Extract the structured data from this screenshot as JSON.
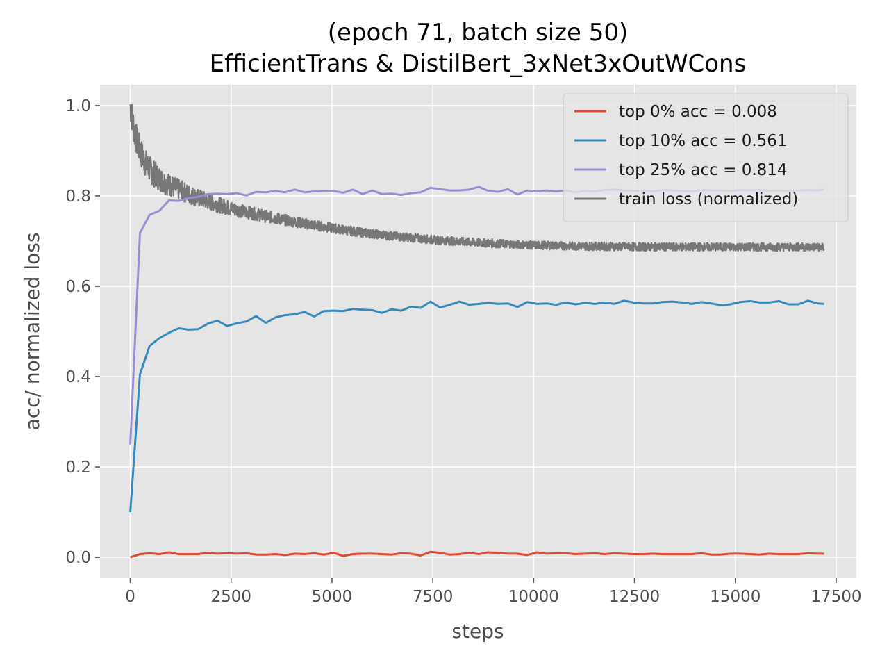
{
  "chart_data": {
    "type": "line",
    "title": "(epoch 71, batch size 50)",
    "subtitle": "EfficientTrans & DistilBert_3xNet3xOutWCons",
    "xlabel": "steps",
    "ylabel": "acc/ normalized loss",
    "xlim": [
      -750,
      18000
    ],
    "ylim": [
      -0.046,
      1.046
    ],
    "xticks": [
      0,
      2500,
      5000,
      7500,
      10000,
      12500,
      15000,
      17500
    ],
    "yticks": [
      0.0,
      0.2,
      0.4,
      0.6,
      0.8,
      1.0
    ],
    "xtick_labels": [
      "0",
      "2500",
      "5000",
      "7500",
      "10000",
      "12500",
      "15000",
      "17500"
    ],
    "ytick_labels": [
      "0.0",
      "0.2",
      "0.4",
      "0.6",
      "0.8",
      "1.0"
    ],
    "grid": true,
    "legend_position": "top-right",
    "background": "#e5e5e5",
    "series": [
      {
        "name": "top 0% acc = 0.008",
        "color": "#e24a33",
        "x": [
          0,
          240,
          480,
          720,
          960,
          1200,
          1440,
          1680,
          1920,
          2160,
          2400,
          2640,
          2880,
          3120,
          3360,
          3600,
          3840,
          4080,
          4320,
          4560,
          4800,
          5040,
          5280,
          5520,
          5760,
          6000,
          6240,
          6480,
          6720,
          6960,
          7200,
          7440,
          7680,
          7920,
          8160,
          8400,
          8640,
          8880,
          9120,
          9360,
          9600,
          9840,
          10080,
          10320,
          10560,
          10800,
          11040,
          11280,
          11520,
          11760,
          12000,
          12240,
          12480,
          12720,
          12960,
          13200,
          13440,
          13680,
          13920,
          14160,
          14400,
          14640,
          14880,
          15120,
          15360,
          15600,
          15840,
          16080,
          16320,
          16560,
          16800,
          17040,
          17200
        ],
        "y": [
          0.0,
          0.007,
          0.009,
          0.007,
          0.011,
          0.007,
          0.007,
          0.007,
          0.01,
          0.008,
          0.009,
          0.008,
          0.009,
          0.006,
          0.006,
          0.007,
          0.005,
          0.008,
          0.007,
          0.009,
          0.006,
          0.01,
          0.003,
          0.007,
          0.008,
          0.008,
          0.007,
          0.006,
          0.009,
          0.008,
          0.004,
          0.012,
          0.01,
          0.006,
          0.007,
          0.01,
          0.007,
          0.011,
          0.01,
          0.008,
          0.008,
          0.005,
          0.011,
          0.008,
          0.009,
          0.009,
          0.007,
          0.008,
          0.009,
          0.007,
          0.009,
          0.008,
          0.007,
          0.007,
          0.008,
          0.007,
          0.007,
          0.007,
          0.007,
          0.009,
          0.006,
          0.006,
          0.008,
          0.008,
          0.007,
          0.006,
          0.008,
          0.007,
          0.007,
          0.007,
          0.009,
          0.008,
          0.008
        ]
      },
      {
        "name": "top 10% acc = 0.561",
        "color": "#348abd",
        "x": [
          0,
          240,
          480,
          720,
          960,
          1200,
          1440,
          1680,
          1920,
          2160,
          2400,
          2640,
          2880,
          3120,
          3360,
          3600,
          3840,
          4080,
          4320,
          4560,
          4800,
          5040,
          5280,
          5520,
          5760,
          6000,
          6240,
          6480,
          6720,
          6960,
          7200,
          7440,
          7680,
          7920,
          8160,
          8400,
          8640,
          8880,
          9120,
          9360,
          9600,
          9840,
          10080,
          10320,
          10560,
          10800,
          11040,
          11280,
          11520,
          11760,
          12000,
          12240,
          12480,
          12720,
          12960,
          13200,
          13440,
          13680,
          13920,
          14160,
          14400,
          14640,
          14880,
          15120,
          15360,
          15600,
          15840,
          16080,
          16320,
          16560,
          16800,
          17040,
          17200
        ],
        "y": [
          0.1,
          0.405,
          0.468,
          0.485,
          0.497,
          0.507,
          0.504,
          0.505,
          0.517,
          0.524,
          0.512,
          0.518,
          0.522,
          0.534,
          0.519,
          0.531,
          0.536,
          0.538,
          0.543,
          0.533,
          0.545,
          0.546,
          0.545,
          0.55,
          0.548,
          0.547,
          0.541,
          0.549,
          0.546,
          0.555,
          0.552,
          0.566,
          0.553,
          0.559,
          0.566,
          0.559,
          0.561,
          0.563,
          0.561,
          0.562,
          0.554,
          0.565,
          0.561,
          0.562,
          0.559,
          0.564,
          0.56,
          0.563,
          0.561,
          0.564,
          0.561,
          0.568,
          0.564,
          0.562,
          0.562,
          0.565,
          0.566,
          0.564,
          0.561,
          0.565,
          0.562,
          0.558,
          0.56,
          0.565,
          0.567,
          0.564,
          0.564,
          0.567,
          0.56,
          0.56,
          0.568,
          0.562,
          0.561
        ]
      },
      {
        "name": "top 25% acc = 0.814",
        "color": "#988ed5",
        "x": [
          0,
          240,
          480,
          720,
          960,
          1200,
          1440,
          1680,
          1920,
          2160,
          2400,
          2640,
          2880,
          3120,
          3360,
          3600,
          3840,
          4080,
          4320,
          4560,
          4800,
          5040,
          5280,
          5520,
          5760,
          6000,
          6240,
          6480,
          6720,
          6960,
          7200,
          7440,
          7680,
          7920,
          8160,
          8400,
          8640,
          8880,
          9120,
          9360,
          9600,
          9840,
          10080,
          10320,
          10560,
          10800,
          11040,
          11280,
          11520,
          11760,
          12000,
          12240,
          12480,
          12720,
          12960,
          13200,
          13440,
          13680,
          13920,
          14160,
          14400,
          14640,
          14880,
          15120,
          15360,
          15600,
          15840,
          16080,
          16320,
          16560,
          16800,
          17040,
          17200
        ],
        "y": [
          0.25,
          0.718,
          0.758,
          0.767,
          0.79,
          0.789,
          0.795,
          0.798,
          0.804,
          0.805,
          0.804,
          0.806,
          0.801,
          0.809,
          0.808,
          0.811,
          0.808,
          0.814,
          0.808,
          0.81,
          0.811,
          0.811,
          0.807,
          0.814,
          0.804,
          0.812,
          0.804,
          0.805,
          0.802,
          0.806,
          0.808,
          0.818,
          0.815,
          0.812,
          0.812,
          0.814,
          0.82,
          0.811,
          0.809,
          0.815,
          0.803,
          0.812,
          0.81,
          0.812,
          0.81,
          0.812,
          0.808,
          0.811,
          0.81,
          0.813,
          0.814,
          0.812,
          0.811,
          0.812,
          0.81,
          0.813,
          0.812,
          0.811,
          0.81,
          0.813,
          0.812,
          0.812,
          0.811,
          0.813,
          0.812,
          0.813,
          0.811,
          0.812,
          0.811,
          0.812,
          0.813,
          0.812,
          0.814
        ]
      },
      {
        "name": "train loss (normalized)",
        "color": "#777777",
        "noisy": true,
        "x": [
          0,
          30,
          60,
          100,
          150,
          200,
          300,
          400,
          500,
          700,
          900,
          1100,
          1300,
          1500,
          1700,
          2000,
          2300,
          2600,
          3000,
          3500,
          4000,
          4500,
          5000,
          5500,
          6000,
          6500,
          7000,
          7500,
          8000,
          8500,
          9000,
          9500,
          10000,
          10500,
          11000,
          12000,
          13000,
          14000,
          15000,
          16000,
          17000,
          17200
        ],
        "y": [
          1.0,
          0.985,
          0.965,
          0.945,
          0.925,
          0.91,
          0.888,
          0.87,
          0.857,
          0.84,
          0.828,
          0.818,
          0.81,
          0.802,
          0.795,
          0.786,
          0.777,
          0.77,
          0.762,
          0.752,
          0.744,
          0.736,
          0.729,
          0.722,
          0.716,
          0.711,
          0.707,
          0.703,
          0.7,
          0.697,
          0.695,
          0.693,
          0.691,
          0.69,
          0.689,
          0.688,
          0.687,
          0.687,
          0.687,
          0.687,
          0.687,
          0.686
        ]
      }
    ]
  }
}
